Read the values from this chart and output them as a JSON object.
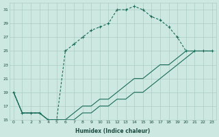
{
  "xlabel": "Humidex (Indice chaleur)",
  "bg_color": "#cce8e0",
  "grid_color": "#aaccc4",
  "line_color": "#1a6b5a",
  "xlim": [
    -0.5,
    23.5
  ],
  "ylim": [
    15,
    32
  ],
  "xticks": [
    0,
    1,
    2,
    3,
    4,
    5,
    6,
    7,
    8,
    9,
    10,
    11,
    12,
    13,
    14,
    15,
    16,
    17,
    18,
    19,
    20,
    21,
    22,
    23
  ],
  "yticks": [
    15,
    17,
    19,
    21,
    23,
    25,
    27,
    29,
    31
  ],
  "line1_x": [
    0,
    1,
    2,
    3,
    4,
    5,
    6,
    7,
    8,
    9,
    10,
    11,
    12,
    13,
    14,
    15,
    16,
    17,
    18,
    19,
    20,
    21,
    22,
    23
  ],
  "line1_y": [
    19,
    16,
    16,
    16,
    15,
    15,
    25,
    26,
    27,
    28,
    28.5,
    29,
    31,
    31,
    31.5,
    31,
    30,
    29.5,
    28.5,
    27,
    25,
    25,
    25,
    25
  ],
  "line2_x": [
    0,
    1,
    2,
    3,
    4,
    5,
    6,
    7,
    8,
    9,
    10,
    11,
    12,
    13,
    14,
    15,
    16,
    17,
    18,
    19,
    20,
    21,
    22,
    23
  ],
  "line2_y": [
    19,
    16,
    16,
    16,
    15,
    15,
    15,
    16,
    17,
    17,
    18,
    18,
    19,
    20,
    21,
    21,
    22,
    23,
    23,
    24,
    25,
    25,
    25,
    25
  ],
  "line3_x": [
    0,
    1,
    2,
    3,
    4,
    5,
    6,
    7,
    8,
    9,
    10,
    11,
    12,
    13,
    14,
    15,
    16,
    17,
    18,
    19,
    20,
    21,
    22,
    23
  ],
  "line3_y": [
    19,
    16,
    16,
    16,
    15,
    15,
    15,
    15,
    16,
    16,
    17,
    17,
    18,
    18,
    19,
    19,
    20,
    21,
    22,
    23,
    24,
    25,
    25,
    25
  ]
}
